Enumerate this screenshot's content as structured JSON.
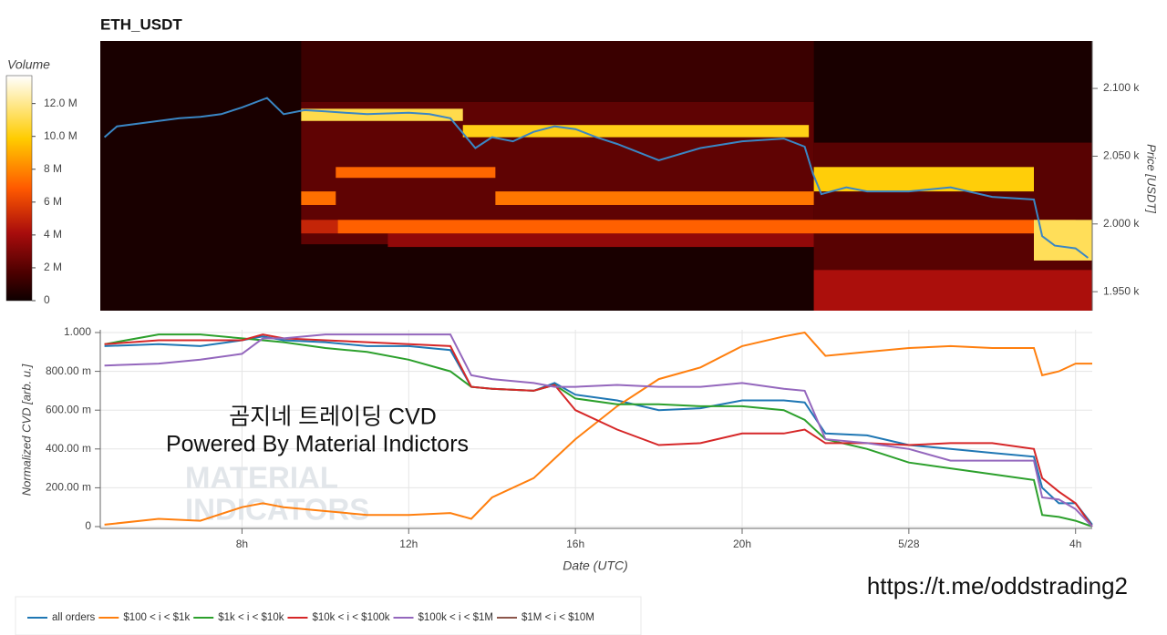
{
  "chart_data": [
    {
      "type": "heatmap",
      "title": "ETH_USDT",
      "y_label": "Price [USDT]",
      "colorbar_label": "Volume",
      "xlim": [
        4.6,
        28.4
      ],
      "ylim": [
        1936,
        2135
      ],
      "yticks": [
        {
          "value": 1950,
          "label": "1.950 k"
        },
        {
          "value": 2000,
          "label": "2.000 k"
        },
        {
          "value": 2050,
          "label": "2.050 k"
        },
        {
          "value": 2100,
          "label": "2.100 k"
        }
      ],
      "zlim": [
        0,
        13.7
      ],
      "zticks": [
        0,
        {
          "value": 2,
          "label": "2 M"
        },
        {
          "value": 4,
          "label": "4 M"
        },
        {
          "value": 6,
          "label": "6 M"
        },
        {
          "value": 8,
          "label": "8 M"
        },
        {
          "value": 10,
          "label": "10.0 M"
        },
        {
          "value": 12,
          "label": "12.0 M"
        }
      ],
      "colorscale": [
        [
          0,
          "#0e0000"
        ],
        [
          0.12,
          "#4a0000"
        ],
        [
          0.3,
          "#a80c0c"
        ],
        [
          0.5,
          "#ff5a00"
        ],
        [
          0.72,
          "#ffcc00"
        ],
        [
          1,
          "#ffffff"
        ]
      ],
      "cells": [
        [
          4.6,
          28.4,
          1936,
          2135,
          0.3
        ],
        [
          9.42,
          21.72,
          2090,
          2135,
          1.2
        ],
        [
          9.42,
          21.72,
          1985,
          2090,
          2.2
        ],
        [
          21.72,
          28.4,
          1936,
          2060,
          2.0
        ],
        [
          11.5,
          21.72,
          1983,
          1993,
          3.5
        ],
        [
          21.72,
          28.4,
          1936,
          1966,
          4.2
        ],
        [
          9.42,
          13.3,
          2076,
          2085,
          11.0
        ],
        [
          13.3,
          21.6,
          2064,
          2073,
          10.2
        ],
        [
          10.25,
          14.08,
          2034,
          2042,
          7.2
        ],
        [
          9.42,
          10.25,
          2014,
          2024,
          7.4
        ],
        [
          14.08,
          21.72,
          2014,
          2024,
          7.6
        ],
        [
          9.42,
          10.3,
          1993,
          2003,
          5.0
        ],
        [
          10.3,
          28.0,
          1993,
          2003,
          7.0
        ],
        [
          21.72,
          27.0,
          2024,
          2042,
          10.0
        ],
        [
          27.0,
          28.4,
          1973,
          2003,
          11.2
        ]
      ],
      "price": {
        "color": "#3a86c4",
        "x": [
          4.7,
          5.0,
          5.5,
          6.0,
          6.5,
          7.0,
          7.5,
          8.0,
          8.6,
          9.0,
          9.5,
          10,
          11,
          12,
          12.5,
          13,
          13.6,
          14,
          14.5,
          15,
          15.5,
          16,
          16.5,
          17,
          18,
          19,
          20,
          21,
          21.5,
          21.7,
          21.9,
          22.5,
          23,
          24,
          25,
          26,
          27,
          27.2,
          27.5,
          28.0,
          28.3
        ],
        "values": [
          2064,
          2072,
          2074,
          2076,
          2078,
          2079,
          2081,
          2086,
          2093,
          2081,
          2084,
          2083,
          2081,
          2082,
          2081,
          2078,
          2056,
          2064,
          2061,
          2068,
          2072,
          2070,
          2064,
          2059,
          2047,
          2056,
          2061,
          2063,
          2057,
          2037,
          2022,
          2027,
          2024,
          2024,
          2027,
          2020,
          2018,
          1991,
          1984,
          1982,
          1975
        ]
      }
    },
    {
      "type": "line",
      "x_label": "Date (UTC)",
      "y_label": "Normalized CVD [arb. u.]",
      "xlim": [
        4.6,
        28.4
      ],
      "ylim": [
        0,
        1
      ],
      "xticks": [
        {
          "value": 8,
          "label": "8h"
        },
        {
          "value": 12,
          "label": "12h"
        },
        {
          "value": 16,
          "label": "16h"
        },
        {
          "value": 20,
          "label": "20h"
        },
        {
          "value": 24,
          "label": "5/28"
        },
        {
          "value": 28,
          "label": "4h"
        }
      ],
      "yticks": [
        0,
        {
          "value": 0.2,
          "label": "200.00 m"
        },
        {
          "value": 0.4,
          "label": "400.00 m"
        },
        {
          "value": 0.6,
          "label": "600.00 m"
        },
        {
          "value": 0.8,
          "label": "800.00 m"
        },
        {
          "value": 1,
          "label": "1.000"
        }
      ],
      "grid": true,
      "annotations": [
        "곰지네 트레이딩 CVD",
        "Powered By Material Indictors",
        "MATERIAL",
        "INDICATORS"
      ],
      "x": [
        4.7,
        6,
        7,
        8,
        8.5,
        9,
        10,
        11,
        12,
        13,
        13.5,
        14,
        15,
        15.5,
        16,
        17,
        18,
        19,
        20,
        21,
        21.5,
        22,
        23,
        24,
        25,
        26,
        27,
        27.2,
        27.6,
        28,
        28.4
      ],
      "series": [
        {
          "name": "all orders",
          "color": "#1f77b4",
          "values": [
            0.93,
            0.94,
            0.93,
            0.96,
            0.98,
            0.96,
            0.95,
            0.93,
            0.93,
            0.91,
            0.72,
            0.71,
            0.7,
            0.74,
            0.68,
            0.65,
            0.6,
            0.61,
            0.65,
            0.65,
            0.64,
            0.48,
            0.47,
            0.42,
            0.4,
            0.38,
            0.36,
            0.2,
            0.12,
            0.12,
            0.01
          ]
        },
        {
          "name": "$100 < i < $1k",
          "color": "#ff7f0e",
          "values": [
            0.01,
            0.04,
            0.03,
            0.1,
            0.12,
            0.1,
            0.08,
            0.06,
            0.06,
            0.07,
            0.04,
            0.15,
            0.25,
            0.35,
            0.45,
            0.62,
            0.76,
            0.82,
            0.93,
            0.98,
            1.0,
            0.88,
            0.9,
            0.92,
            0.93,
            0.92,
            0.92,
            0.78,
            0.8,
            0.84,
            0.84
          ]
        },
        {
          "name": "$1k < i < $10k",
          "color": "#2ca02c",
          "values": [
            0.94,
            0.99,
            0.99,
            0.97,
            0.96,
            0.95,
            0.92,
            0.9,
            0.86,
            0.8,
            0.72,
            0.71,
            0.7,
            0.73,
            0.66,
            0.63,
            0.63,
            0.62,
            0.62,
            0.6,
            0.55,
            0.45,
            0.4,
            0.33,
            0.3,
            0.27,
            0.24,
            0.06,
            0.05,
            0.03,
            0.0
          ]
        },
        {
          "name": "$10k < i < $100k",
          "color": "#d62728",
          "values": [
            0.94,
            0.96,
            0.96,
            0.96,
            0.99,
            0.97,
            0.96,
            0.95,
            0.94,
            0.93,
            0.72,
            0.71,
            0.7,
            0.73,
            0.6,
            0.5,
            0.42,
            0.43,
            0.48,
            0.48,
            0.5,
            0.43,
            0.43,
            0.42,
            0.43,
            0.43,
            0.4,
            0.25,
            0.18,
            0.12,
            0.0
          ]
        },
        {
          "name": "$100k < i < $1M",
          "color": "#9467bd",
          "values": [
            0.83,
            0.84,
            0.86,
            0.89,
            0.97,
            0.97,
            0.99,
            0.99,
            0.99,
            0.99,
            0.78,
            0.76,
            0.74,
            0.72,
            0.72,
            0.73,
            0.72,
            0.72,
            0.74,
            0.71,
            0.7,
            0.45,
            0.43,
            0.4,
            0.34,
            0.34,
            0.34,
            0.15,
            0.14,
            0.09,
            0.0
          ]
        },
        {
          "name": "$1M < i < $10M",
          "color": "#8c564b",
          "values": [
            null,
            null,
            null,
            null,
            null,
            null,
            null,
            null,
            null,
            null,
            null,
            null,
            null,
            null,
            null,
            null,
            null,
            null,
            null,
            null,
            null,
            null,
            null,
            null,
            null,
            null,
            null,
            null,
            null,
            null,
            null
          ]
        }
      ]
    }
  ],
  "url": "https://t.me/oddstrading2"
}
